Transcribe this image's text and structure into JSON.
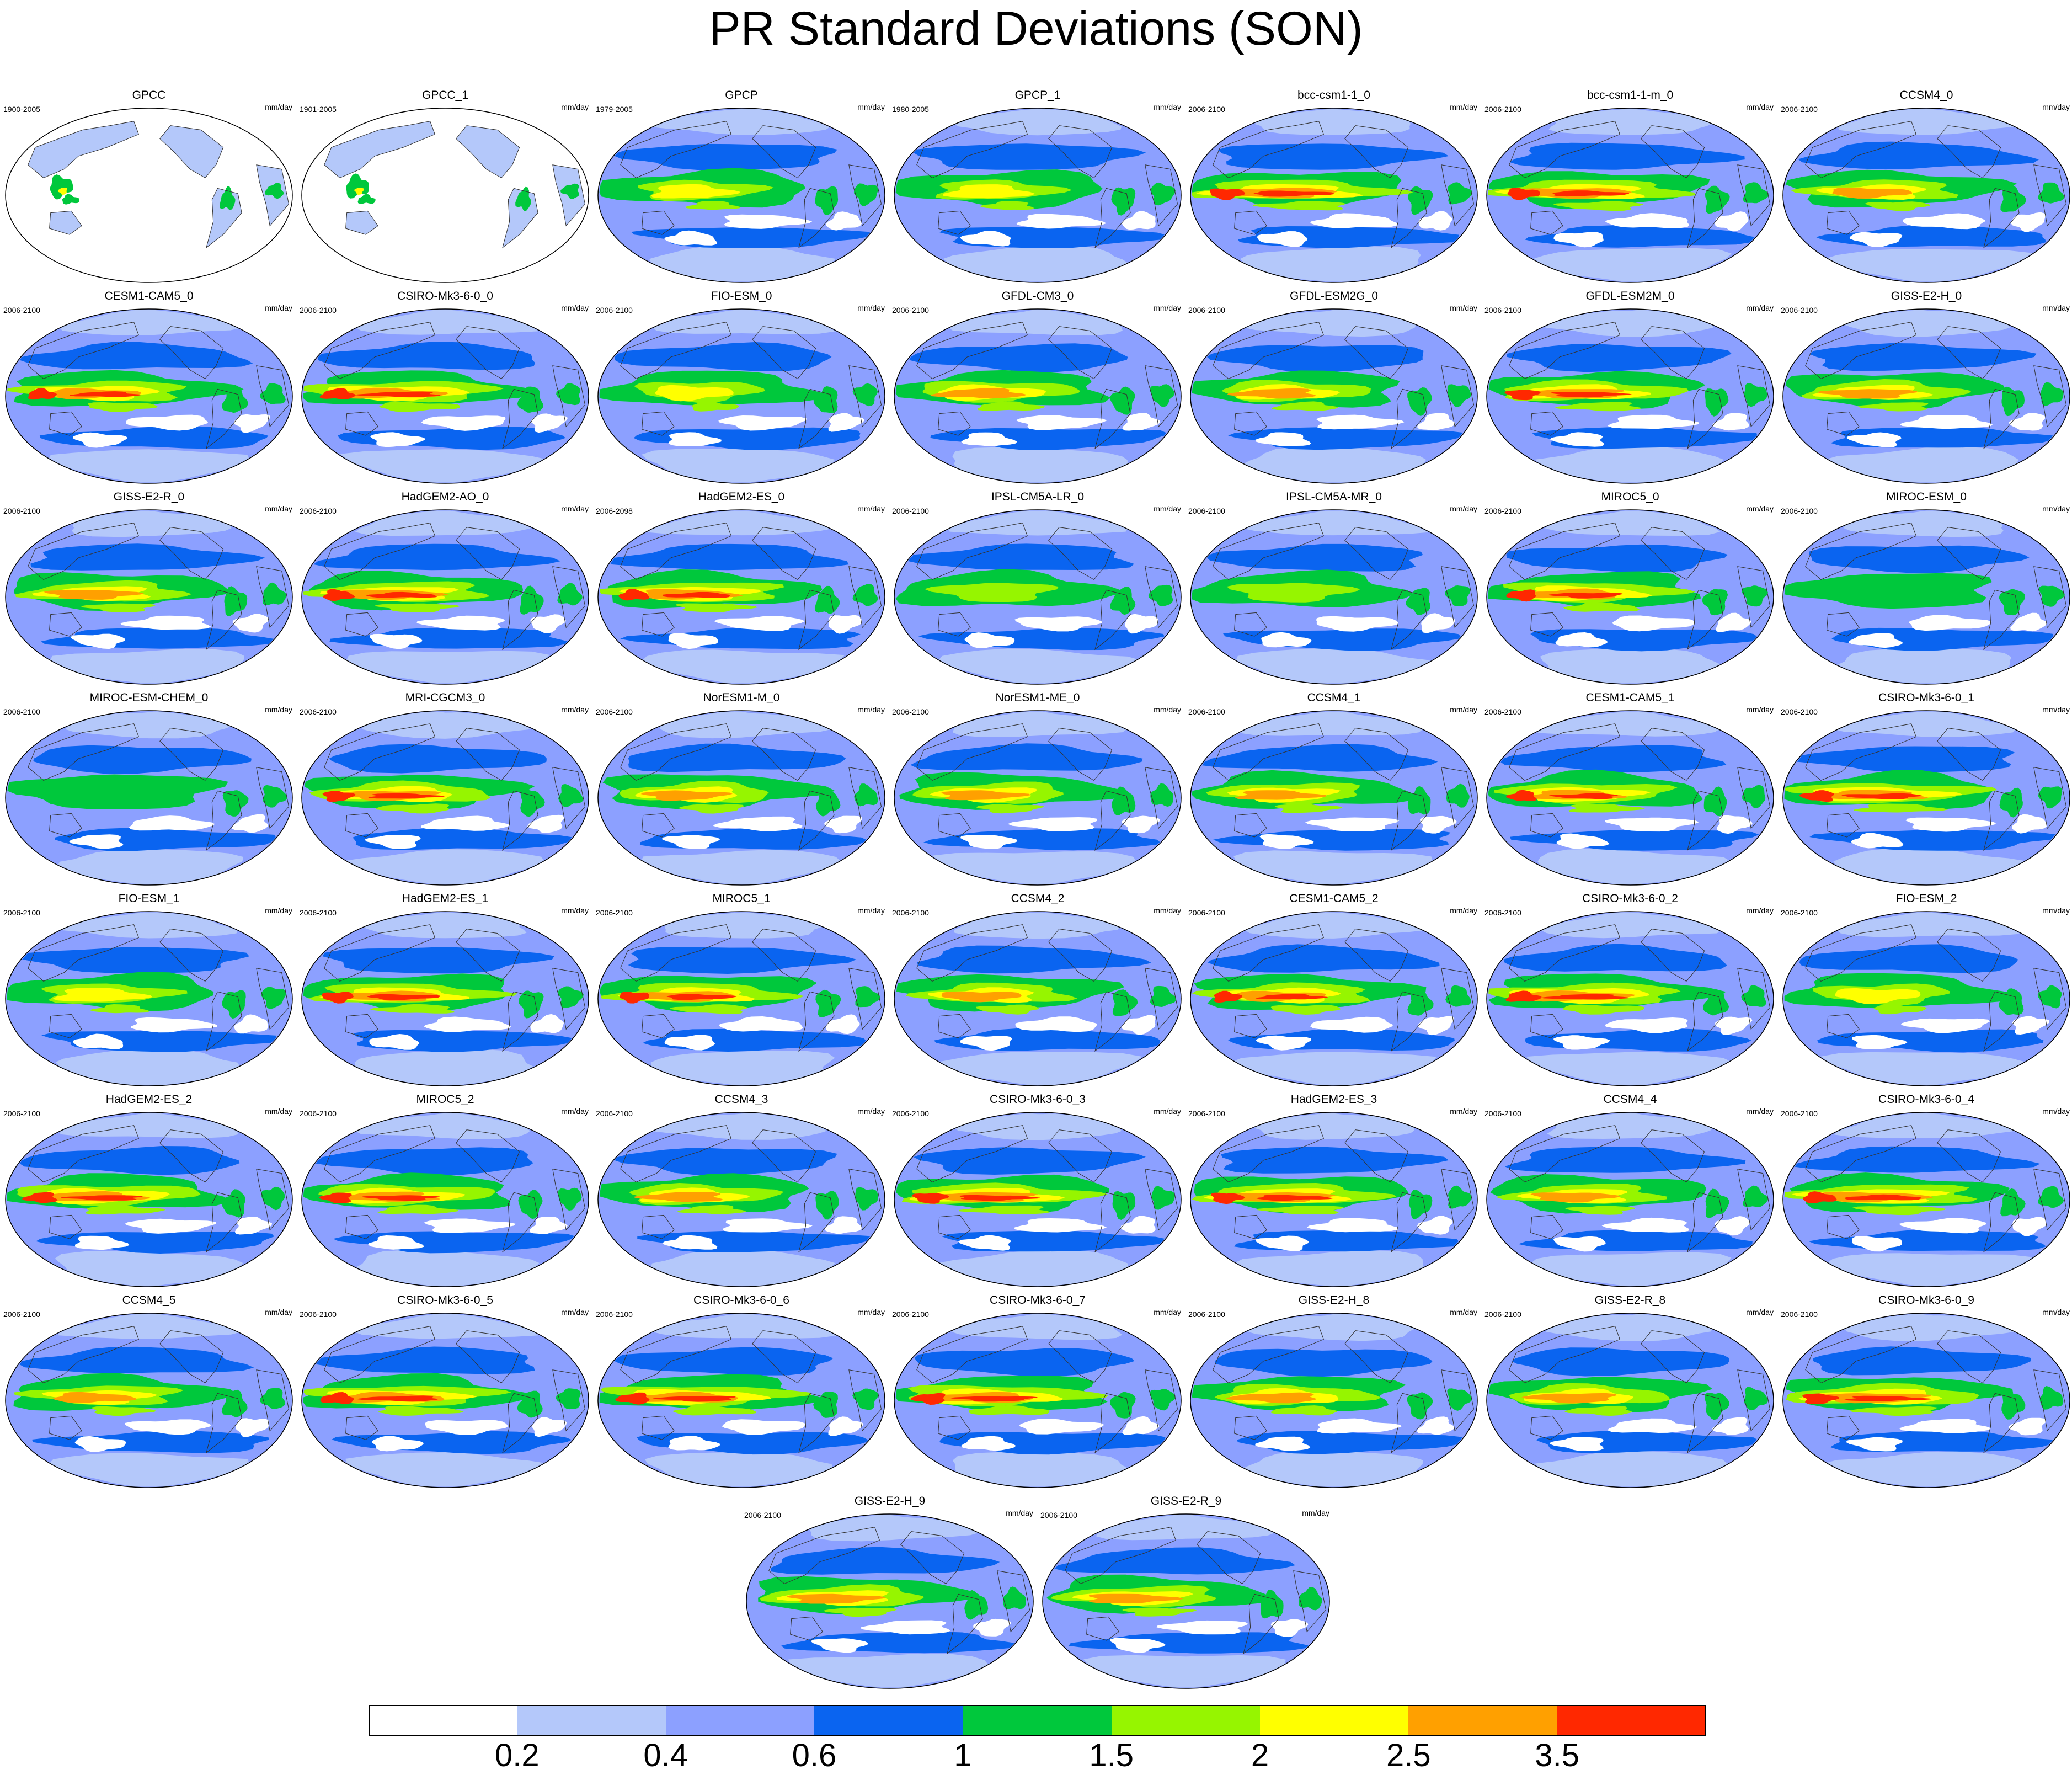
{
  "title": "PR Standard Deviations (SON)",
  "units": "mm/day",
  "colorbar": {
    "colors": [
      "#ffffff",
      "#b4c8fa",
      "#8ca0ff",
      "#0a64f0",
      "#00c83c",
      "#96f500",
      "#ffff00",
      "#ffa000",
      "#ff2800"
    ],
    "tick_labels": [
      "0.2",
      "0.4",
      "0.6",
      "1",
      "1.5",
      "2",
      "2.5",
      "3.5"
    ]
  },
  "panels": [
    {
      "name": "GPCC",
      "period": "1900-2005",
      "intensity": 0.0,
      "coverage": "land"
    },
    {
      "name": "GPCC_1",
      "period": "1901-2005",
      "intensity": 0.0,
      "coverage": "land"
    },
    {
      "name": "GPCP",
      "period": "1979-2005",
      "intensity": 0.55
    },
    {
      "name": "GPCP_1",
      "period": "1980-2005",
      "intensity": 0.55
    },
    {
      "name": "bcc-csm1-1_0",
      "period": "2006-2100",
      "intensity": 1.0
    },
    {
      "name": "bcc-csm1-1-m_0",
      "period": "2006-2100",
      "intensity": 0.95
    },
    {
      "name": "CCSM4_0",
      "period": "2006-2100",
      "intensity": 0.7
    },
    {
      "name": "CESM1-CAM5_0",
      "period": "2006-2100",
      "intensity": 0.8
    },
    {
      "name": "CSIRO-Mk3-6-0_0",
      "period": "2006-2100",
      "intensity": 0.95
    },
    {
      "name": "FIO-ESM_0",
      "period": "2006-2100",
      "intensity": 0.55
    },
    {
      "name": "GFDL-CM3_0",
      "period": "2006-2100",
      "intensity": 0.75
    },
    {
      "name": "GFDL-ESM2G_0",
      "period": "2006-2100",
      "intensity": 0.7
    },
    {
      "name": "GFDL-ESM2M_0",
      "period": "2006-2100",
      "intensity": 0.9
    },
    {
      "name": "GISS-E2-H_0",
      "period": "2006-2100",
      "intensity": 0.75
    },
    {
      "name": "GISS-E2-R_0",
      "period": "2006-2100",
      "intensity": 0.75
    },
    {
      "name": "HadGEM2-AO_0",
      "period": "2006-2100",
      "intensity": 0.85
    },
    {
      "name": "HadGEM2-ES_0",
      "period": "2006-2098",
      "intensity": 0.85
    },
    {
      "name": "IPSL-CM5A-LR_0",
      "period": "2006-2100",
      "intensity": 0.5
    },
    {
      "name": "IPSL-CM5A-MR_0",
      "period": "2006-2100",
      "intensity": 0.5
    },
    {
      "name": "MIROC5_0",
      "period": "2006-2100",
      "intensity": 0.85
    },
    {
      "name": "MIROC-ESM_0",
      "period": "2006-2100",
      "intensity": 0.3
    },
    {
      "name": "MIROC-ESM-CHEM_0",
      "period": "2006-2100",
      "intensity": 0.3
    },
    {
      "name": "MRI-CGCM3_0",
      "period": "2006-2100",
      "intensity": 0.85
    },
    {
      "name": "NorESM1-M_0",
      "period": "2006-2100",
      "intensity": 0.7
    },
    {
      "name": "NorESM1-ME_0",
      "period": "2006-2100",
      "intensity": 0.7
    },
    {
      "name": "CCSM4_1",
      "period": "2006-2100",
      "intensity": 0.7
    },
    {
      "name": "CESM1-CAM5_1",
      "period": "2006-2100",
      "intensity": 0.8
    },
    {
      "name": "CSIRO-Mk3-6-0_1",
      "period": "2006-2100",
      "intensity": 0.95
    },
    {
      "name": "FIO-ESM_1",
      "period": "2006-2100",
      "intensity": 0.6
    },
    {
      "name": "HadGEM2-ES_1",
      "period": "2006-2100",
      "intensity": 0.9
    },
    {
      "name": "MIROC5_1",
      "period": "2006-2100",
      "intensity": 0.85
    },
    {
      "name": "CCSM4_2",
      "period": "2006-2100",
      "intensity": 0.7
    },
    {
      "name": "CESM1-CAM5_2",
      "period": "2006-2100",
      "intensity": 0.8
    },
    {
      "name": "CSIRO-Mk3-6-0_2",
      "period": "2006-2100",
      "intensity": 0.95
    },
    {
      "name": "FIO-ESM_2",
      "period": "2006-2100",
      "intensity": 0.6
    },
    {
      "name": "HadGEM2-ES_2",
      "period": "2006-2100",
      "intensity": 0.9
    },
    {
      "name": "MIROC5_2",
      "period": "2006-2100",
      "intensity": 0.85
    },
    {
      "name": "CCSM4_3",
      "period": "2006-2100",
      "intensity": 0.7
    },
    {
      "name": "CSIRO-Mk3-6-0_3",
      "period": "2006-2100",
      "intensity": 0.95
    },
    {
      "name": "HadGEM2-ES_3",
      "period": "2006-2100",
      "intensity": 0.9
    },
    {
      "name": "CCSM4_4",
      "period": "2006-2100",
      "intensity": 0.7
    },
    {
      "name": "CSIRO-Mk3-6-0_4",
      "period": "2006-2100",
      "intensity": 0.95
    },
    {
      "name": "CCSM4_5",
      "period": "2006-2100",
      "intensity": 0.7
    },
    {
      "name": "CSIRO-Mk3-6-0_5",
      "period": "2006-2100",
      "intensity": 0.95
    },
    {
      "name": "CSIRO-Mk3-6-0_6",
      "period": "2006-2100",
      "intensity": 0.95
    },
    {
      "name": "CSIRO-Mk3-6-0_7",
      "period": "2006-2100",
      "intensity": 0.95
    },
    {
      "name": "GISS-E2-H_8",
      "period": "2006-2100",
      "intensity": 0.75
    },
    {
      "name": "GISS-E2-R_8",
      "period": "2006-2100",
      "intensity": 0.75
    },
    {
      "name": "CSIRO-Mk3-6-0_9",
      "period": "2006-2100",
      "intensity": 0.95
    },
    {
      "name": "GISS-E2-H_9",
      "period": "2006-2100",
      "intensity": 0.75
    },
    {
      "name": "GISS-E2-R_9",
      "period": "2006-2100",
      "intensity": 0.75
    }
  ]
}
